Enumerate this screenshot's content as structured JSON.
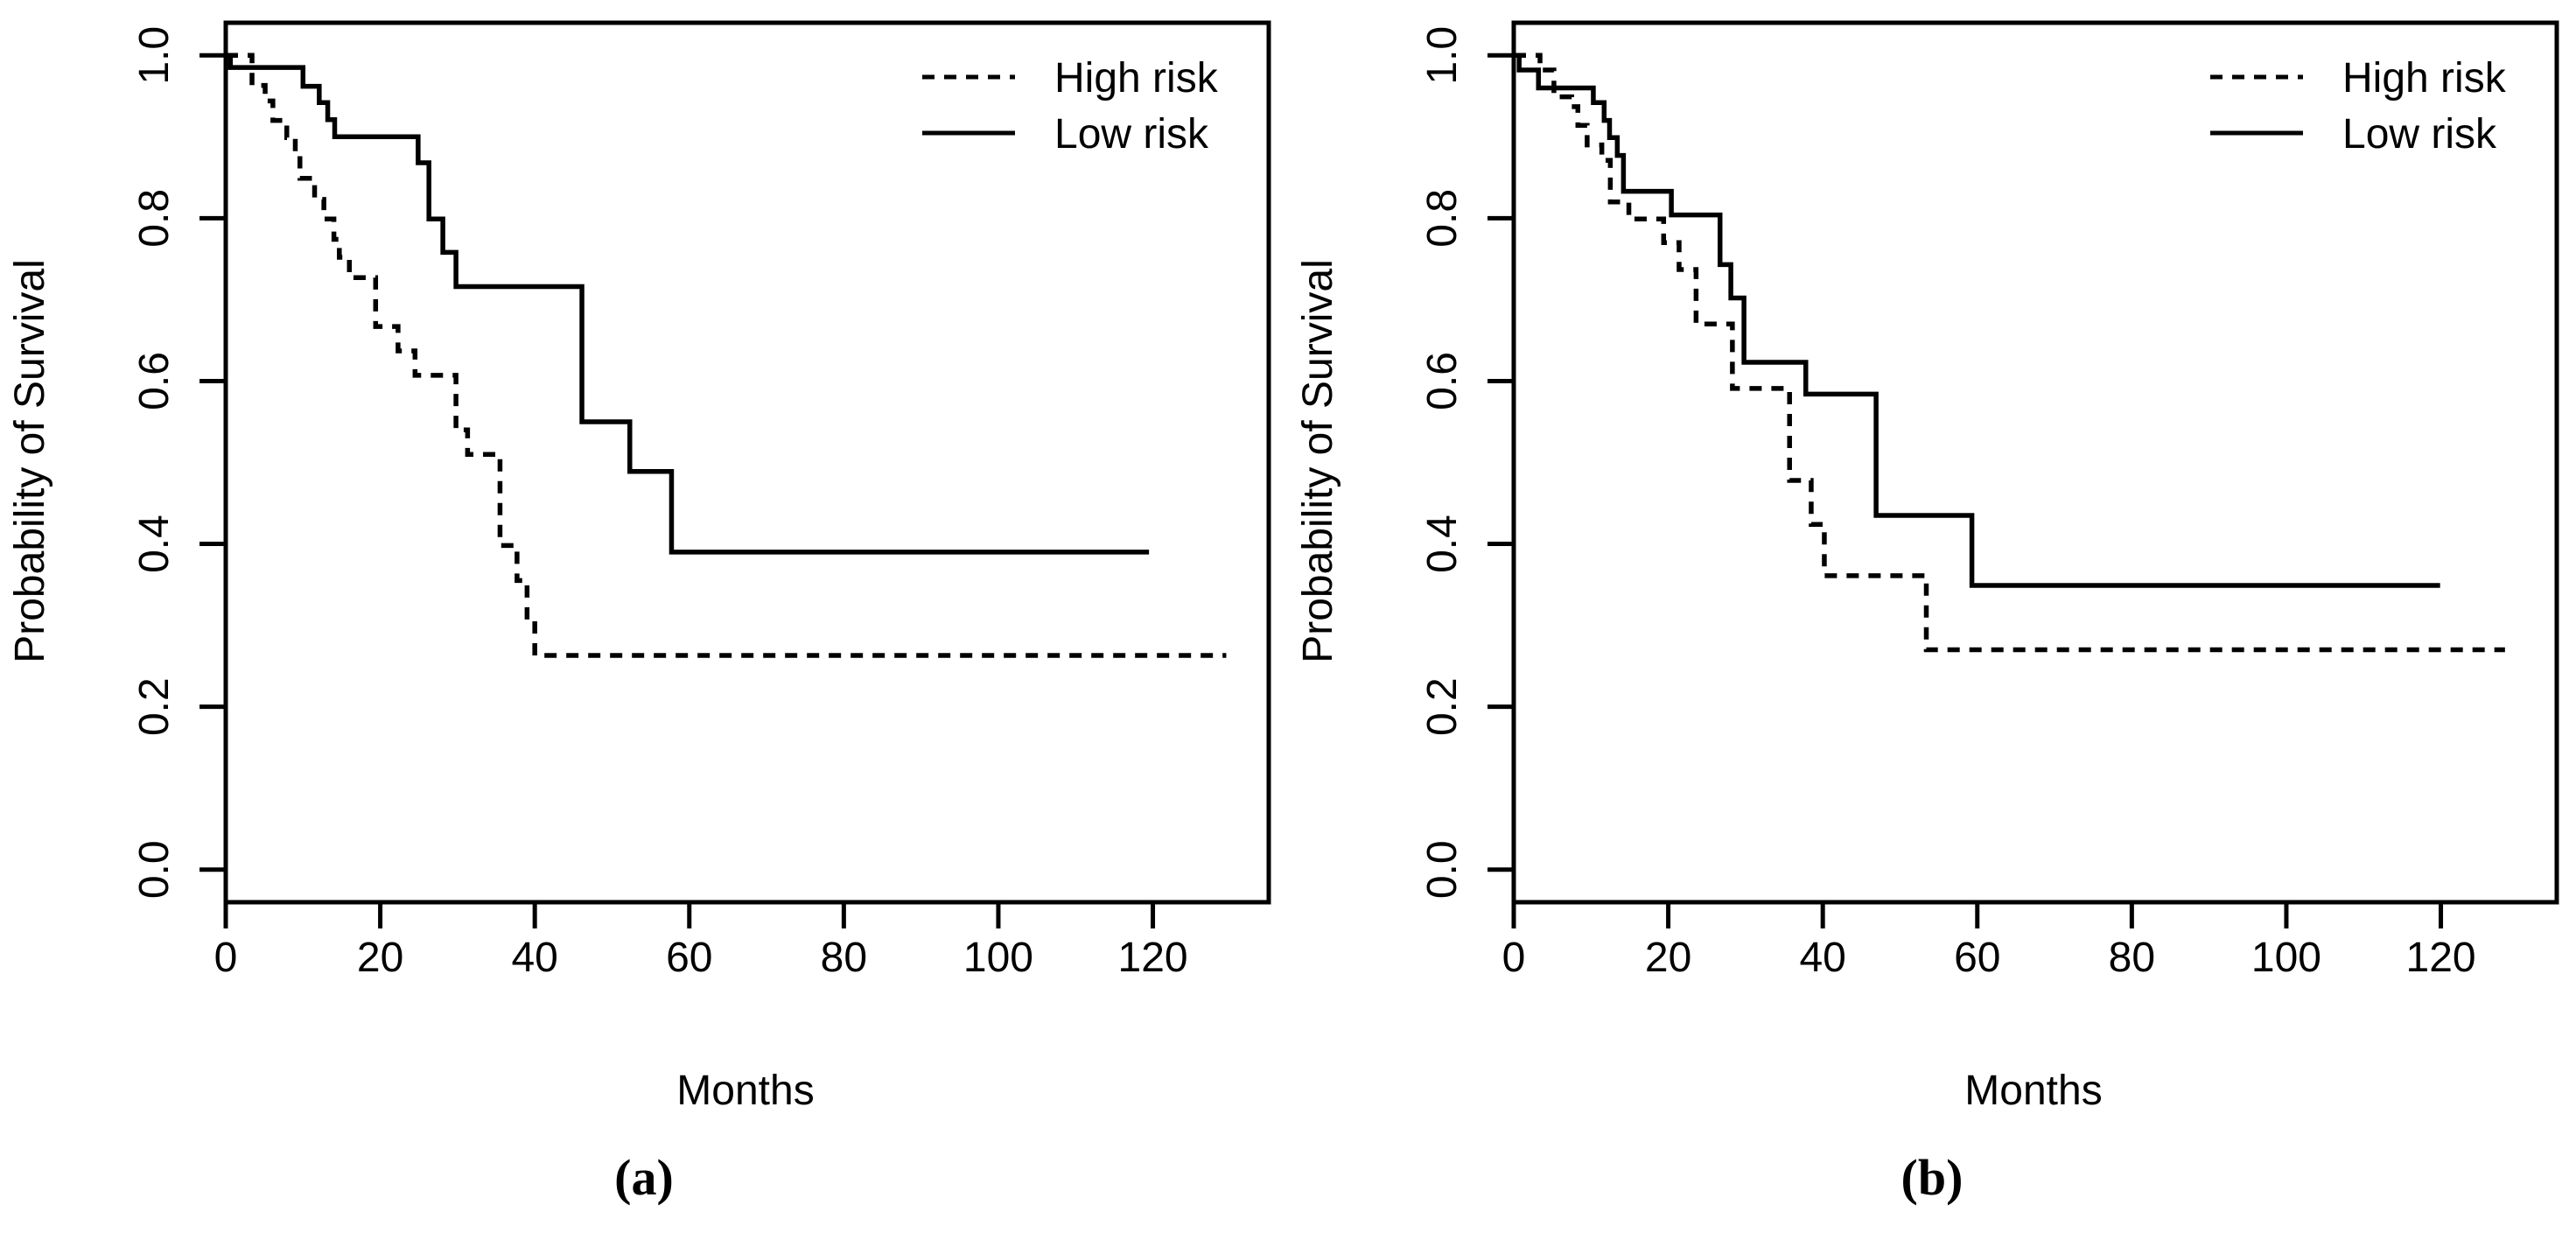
{
  "figure": {
    "background": "#ffffff",
    "line_color": "#000000"
  },
  "chart_data": [
    {
      "id": "a",
      "type": "line",
      "subtype": "kaplan-meier-step",
      "caption": "(a)",
      "xlabel": "Months",
      "ylabel": "Probability of Survival",
      "xlim": [
        0,
        135
      ],
      "ylim": [
        -0.04,
        1.04
      ],
      "xticks": [
        0,
        20,
        40,
        60,
        80,
        100,
        120
      ],
      "yticks": [
        "0.0",
        "0.2",
        "0.4",
        "0.6",
        "0.8",
        "1.0"
      ],
      "grid": "off",
      "legend": {
        "position": "top-right",
        "items": [
          {
            "label": "High risk",
            "style": "dashed"
          },
          {
            "label": "Low risk",
            "style": "solid"
          }
        ]
      },
      "series": [
        {
          "name": "High risk",
          "style": "dashed",
          "points": [
            [
              0,
              1.0
            ],
            [
              3.4,
              0.963
            ],
            [
              5.1,
              0.944
            ],
            [
              6.1,
              0.92
            ],
            [
              7.9,
              0.899
            ],
            [
              9.0,
              0.877
            ],
            [
              9.6,
              0.849
            ],
            [
              11.5,
              0.823
            ],
            [
              12.7,
              0.799
            ],
            [
              14.0,
              0.774
            ],
            [
              14.7,
              0.752
            ],
            [
              16.0,
              0.727
            ],
            [
              19.4,
              0.667
            ],
            [
              22.3,
              0.637
            ],
            [
              24.5,
              0.607
            ],
            [
              29.8,
              0.54
            ],
            [
              31.3,
              0.51
            ],
            [
              35.5,
              0.398
            ],
            [
              37.7,
              0.355
            ],
            [
              39.0,
              0.305
            ],
            [
              40.0,
              0.263
            ],
            [
              129.5,
              0.263
            ]
          ]
        },
        {
          "name": "Low risk",
          "style": "solid",
          "points": [
            [
              0,
              1.0
            ],
            [
              0.6,
              0.985
            ],
            [
              10.0,
              0.962
            ],
            [
              12.1,
              0.942
            ],
            [
              13.2,
              0.921
            ],
            [
              14.1,
              0.9
            ],
            [
              24.9,
              0.868
            ],
            [
              26.3,
              0.799
            ],
            [
              28.1,
              0.758
            ],
            [
              29.8,
              0.716
            ],
            [
              46.1,
              0.55
            ],
            [
              52.3,
              0.489
            ],
            [
              57.7,
              0.39
            ],
            [
              119.5,
              0.39
            ]
          ]
        }
      ]
    },
    {
      "id": "b",
      "type": "line",
      "subtype": "kaplan-meier-step",
      "caption": "(b)",
      "xlabel": "Months",
      "ylabel": "Probability of Survival",
      "xlim": [
        0,
        135
      ],
      "ylim": [
        -0.04,
        1.04
      ],
      "xticks": [
        0,
        20,
        40,
        60,
        80,
        100,
        120
      ],
      "yticks": [
        "0.0",
        "0.2",
        "0.4",
        "0.6",
        "0.8",
        "1.0"
      ],
      "grid": "off",
      "legend": {
        "position": "top-right",
        "items": [
          {
            "label": "High risk",
            "style": "dashed"
          },
          {
            "label": "Low risk",
            "style": "solid"
          }
        ]
      },
      "series": [
        {
          "name": "High risk",
          "style": "dashed",
          "points": [
            [
              0,
              1.0
            ],
            [
              3.4,
              0.982
            ],
            [
              5.2,
              0.949
            ],
            [
              7.5,
              0.937
            ],
            [
              8.3,
              0.914
            ],
            [
              9.5,
              0.89
            ],
            [
              11.4,
              0.871
            ],
            [
              12.5,
              0.82
            ],
            [
              14.9,
              0.799
            ],
            [
              19.4,
              0.77
            ],
            [
              21.4,
              0.737
            ],
            [
              23.6,
              0.67
            ],
            [
              28.3,
              0.591
            ],
            [
              35.7,
              0.478
            ],
            [
              38.5,
              0.424
            ],
            [
              40.2,
              0.361
            ],
            [
              53.4,
              0.27
            ],
            [
              128.3,
              0.27
            ]
          ]
        },
        {
          "name": "Low risk",
          "style": "solid",
          "points": [
            [
              0,
              1.0
            ],
            [
              0.7,
              0.982
            ],
            [
              3.2,
              0.96
            ],
            [
              10.3,
              0.942
            ],
            [
              11.7,
              0.92
            ],
            [
              12.4,
              0.899
            ],
            [
              13.4,
              0.877
            ],
            [
              14.2,
              0.833
            ],
            [
              20.4,
              0.804
            ],
            [
              26.7,
              0.743
            ],
            [
              28.1,
              0.702
            ],
            [
              29.8,
              0.623
            ],
            [
              37.8,
              0.584
            ],
            [
              46.9,
              0.435
            ],
            [
              59.3,
              0.349
            ],
            [
              119.9,
              0.349
            ]
          ]
        }
      ]
    }
  ]
}
